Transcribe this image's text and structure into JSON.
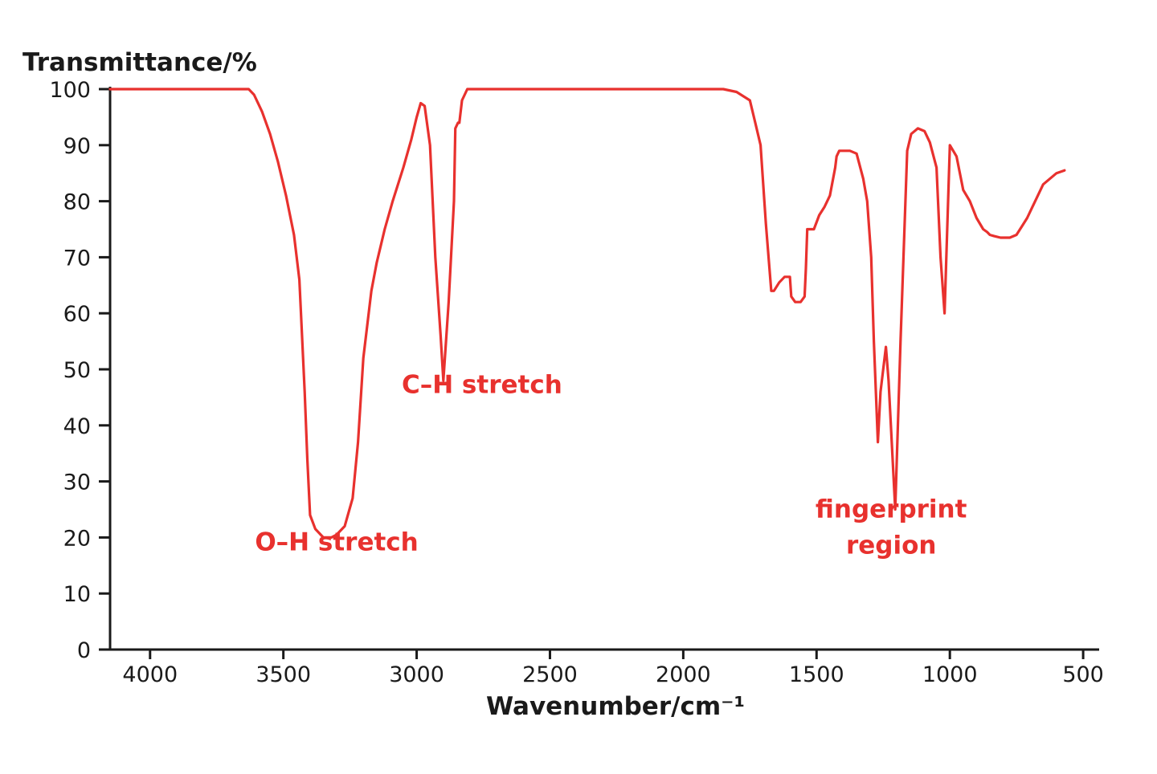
{
  "chart_data": {
    "type": "line",
    "title": "",
    "xlabel": "Wavenumber/cm⁻¹",
    "ylabel": "Transmittance/%",
    "xlim": [
      4150,
      440
    ],
    "ylim": [
      0,
      100
    ],
    "x_reversed": true,
    "grid": false,
    "x_ticks": [
      4000,
      3500,
      3000,
      2500,
      2000,
      1500,
      1000,
      500
    ],
    "y_ticks": [
      0,
      10,
      20,
      30,
      40,
      50,
      60,
      70,
      80,
      90,
      100
    ],
    "line_color": "#e8312e",
    "series": [
      {
        "x": [
          4150,
          3630,
          3610,
          3580,
          3550,
          3520,
          3490,
          3460,
          3440,
          3420,
          3410,
          3400,
          3380,
          3350,
          3320,
          3300,
          3270,
          3240,
          3220,
          3200,
          3170,
          3150,
          3120,
          3090,
          3050,
          3020,
          3000,
          2985,
          2970,
          2950,
          2930,
          2910,
          2900,
          2880,
          2860,
          2855,
          2845,
          2840,
          2830,
          2810,
          2790,
          1850,
          1800,
          1750,
          1730,
          1710,
          1690,
          1670,
          1660,
          1640,
          1620,
          1600,
          1595,
          1580,
          1560,
          1545,
          1540,
          1535,
          1510,
          1490,
          1470,
          1450,
          1430,
          1425,
          1415,
          1400,
          1375,
          1350,
          1325,
          1310,
          1295,
          1285,
          1270,
          1260,
          1240,
          1230,
          1205,
          1185,
          1160,
          1145,
          1120,
          1095,
          1075,
          1050,
          1035,
          1020,
          1010,
          1000,
          975,
          950,
          925,
          900,
          875,
          860,
          850,
          835,
          810,
          775,
          750,
          730,
          710,
          690,
          670,
          650,
          625,
          600,
          570
        ],
        "y": [
          100,
          100,
          99,
          96,
          92,
          87,
          81,
          74,
          66,
          46,
          34,
          24,
          21.5,
          20,
          20,
          20.5,
          22,
          27,
          37,
          52,
          64,
          69,
          75,
          80,
          86,
          91,
          95,
          97.5,
          97,
          90,
          70,
          56,
          48,
          62,
          80,
          93,
          94,
          94,
          98,
          100,
          100,
          100,
          99.5,
          98,
          94,
          90,
          76,
          64,
          64,
          65.5,
          66.5,
          66.5,
          63,
          62,
          62,
          63,
          68,
          75,
          75,
          77.5,
          79,
          81,
          86,
          88,
          89,
          89,
          89,
          88.5,
          84,
          80,
          70,
          55,
          37,
          46,
          54,
          48,
          25,
          55,
          89,
          92,
          93,
          92.5,
          90.5,
          86,
          70,
          60,
          75,
          90,
          88,
          82,
          80,
          77,
          75,
          74.5,
          74,
          73.8,
          73.5,
          73.5,
          74,
          75.5,
          77,
          79,
          81,
          83,
          84,
          85,
          85.5
        ]
      }
    ],
    "annotations": [
      {
        "id": "oh",
        "text": "O–H stretch",
        "x": 3300,
        "y": 17.7,
        "anchor": "middle"
      },
      {
        "id": "ch",
        "text": "C–H stretch",
        "x": 2755,
        "y": 45.8,
        "anchor": "middle"
      },
      {
        "id": "fp1",
        "text": "fingerprint",
        "x": 1220,
        "y": 23.6,
        "anchor": "middle"
      },
      {
        "id": "fp2",
        "text": "region",
        "x": 1220,
        "y": 17.1,
        "anchor": "middle"
      }
    ]
  }
}
